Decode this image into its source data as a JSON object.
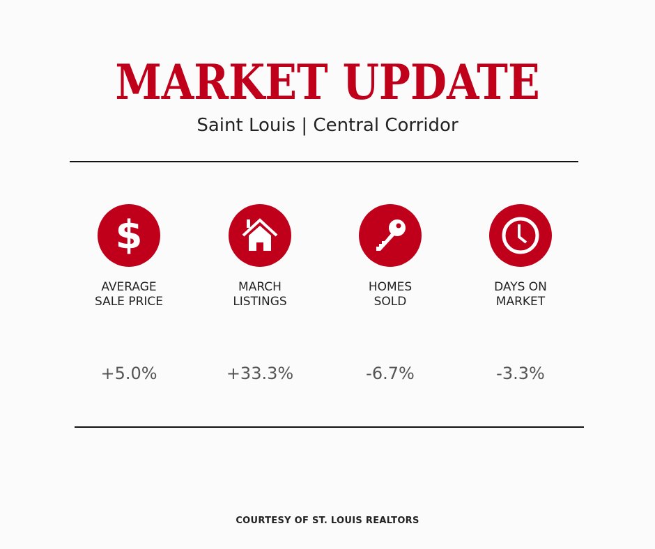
{
  "header": {
    "title": "MARKET UPDATE",
    "subtitle": "Saint Louis | Central Corridor"
  },
  "accent_color": "#c0001a",
  "stats": [
    {
      "icon": "dollar-icon",
      "label_line1": "AVERAGE",
      "label_line2": "SALE PRICE",
      "value": "+5.0%"
    },
    {
      "icon": "house-icon",
      "label_line1": "MARCH",
      "label_line2": "LISTINGS",
      "value": "+33.3%"
    },
    {
      "icon": "key-icon",
      "label_line1": "HOMES",
      "label_line2": "SOLD",
      "value": "-6.7%"
    },
    {
      "icon": "clock-icon",
      "label_line1": "DAYS ON",
      "label_line2": "MARKET",
      "value": "-3.3%"
    }
  ],
  "footer": {
    "text": "COURTESY OF ST. LOUIS REALTORS"
  }
}
